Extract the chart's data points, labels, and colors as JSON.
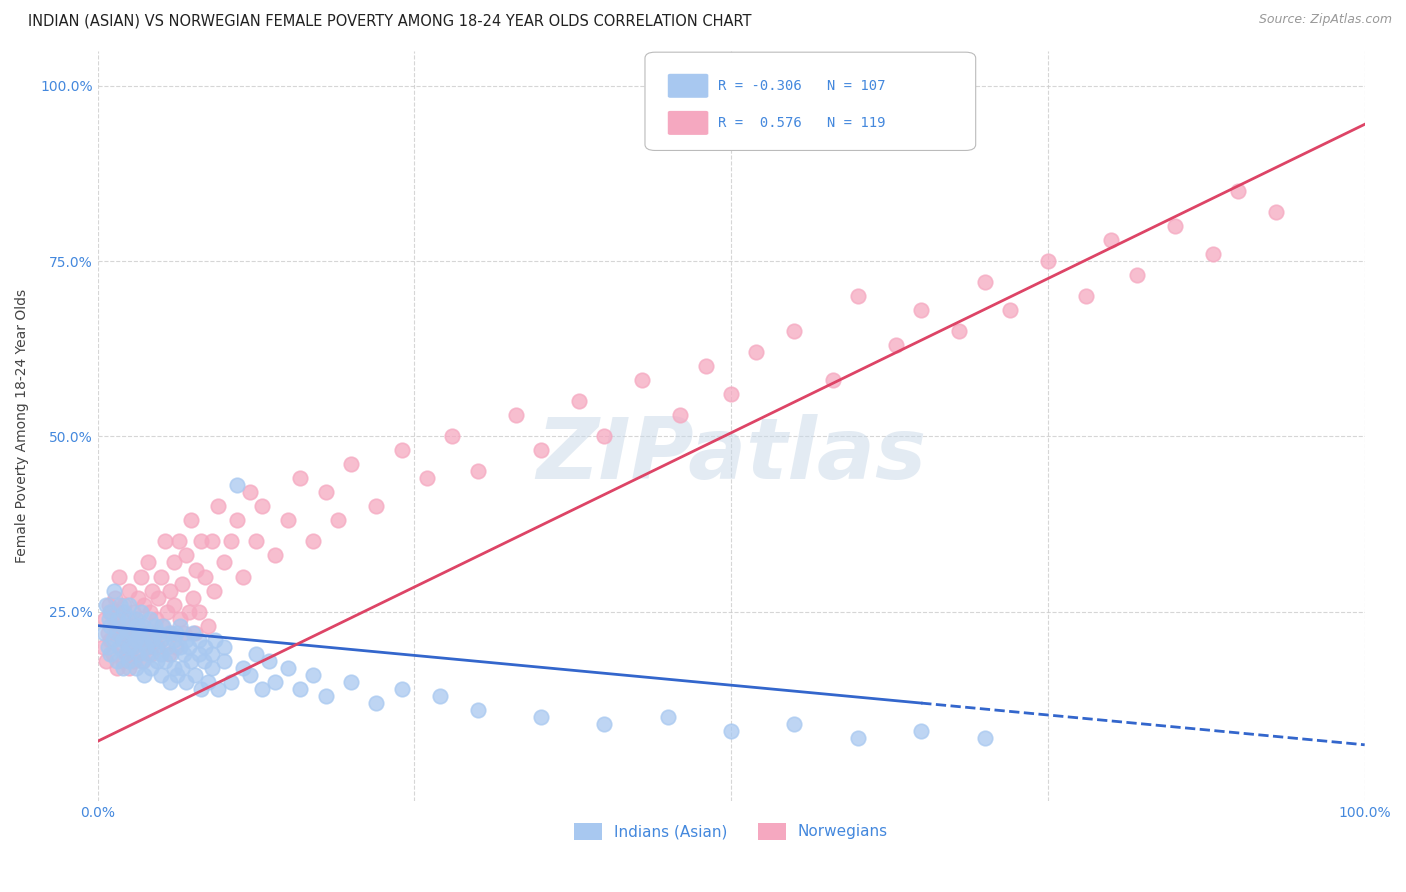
{
  "title": "INDIAN (ASIAN) VS NORWEGIAN FEMALE POVERTY AMONG 18-24 YEAR OLDS CORRELATION CHART",
  "source": "Source: ZipAtlas.com",
  "ylabel": "Female Poverty Among 18-24 Year Olds",
  "watermark": "ZIPatlas",
  "xlim": [
    0.0,
    1.0
  ],
  "ylim": [
    -0.02,
    1.05
  ],
  "blue_color": "#a8c8f0",
  "pink_color": "#f5a8c0",
  "blue_line_color": "#3366cc",
  "pink_line_color": "#dd4466",
  "tick_label_color": "#4488dd",
  "grid_color": "#cccccc",
  "background_color": "#ffffff",
  "title_color": "#222222",
  "axis_label_color": "#444444",
  "legend_label_indian": "Indians (Asian)",
  "legend_label_norwegian": "Norwegians",
  "blue_scatter_x": [
    0.005,
    0.007,
    0.008,
    0.009,
    0.01,
    0.01,
    0.01,
    0.012,
    0.013,
    0.015,
    0.015,
    0.016,
    0.017,
    0.018,
    0.02,
    0.02,
    0.02,
    0.021,
    0.022,
    0.023,
    0.024,
    0.025,
    0.025,
    0.025,
    0.027,
    0.028,
    0.03,
    0.03,
    0.03,
    0.031,
    0.032,
    0.033,
    0.034,
    0.035,
    0.035,
    0.036,
    0.037,
    0.038,
    0.04,
    0.04,
    0.041,
    0.042,
    0.043,
    0.045,
    0.045,
    0.047,
    0.048,
    0.05,
    0.05,
    0.05,
    0.052,
    0.053,
    0.055,
    0.056,
    0.057,
    0.058,
    0.06,
    0.06,
    0.062,
    0.063,
    0.065,
    0.065,
    0.067,
    0.068,
    0.07,
    0.07,
    0.072,
    0.074,
    0.075,
    0.077,
    0.08,
    0.08,
    0.082,
    0.084,
    0.085,
    0.087,
    0.09,
    0.09,
    0.093,
    0.095,
    0.1,
    0.1,
    0.105,
    0.11,
    0.115,
    0.12,
    0.125,
    0.13,
    0.135,
    0.14,
    0.15,
    0.16,
    0.17,
    0.18,
    0.2,
    0.22,
    0.24,
    0.27,
    0.3,
    0.35,
    0.4,
    0.45,
    0.5,
    0.55,
    0.6,
    0.65,
    0.7
  ],
  "blue_scatter_y": [
    0.22,
    0.26,
    0.2,
    0.24,
    0.23,
    0.25,
    0.19,
    0.21,
    0.28,
    0.22,
    0.18,
    0.24,
    0.2,
    0.26,
    0.21,
    0.23,
    0.17,
    0.25,
    0.19,
    0.22,
    0.24,
    0.2,
    0.26,
    0.18,
    0.22,
    0.2,
    0.21,
    0.24,
    0.17,
    0.23,
    0.19,
    0.22,
    0.25,
    0.18,
    0.21,
    0.23,
    0.16,
    0.2,
    0.22,
    0.19,
    0.24,
    0.17,
    0.21,
    0.2,
    0.23,
    0.18,
    0.22,
    0.19,
    0.21,
    0.16,
    0.23,
    0.18,
    0.2,
    0.22,
    0.15,
    0.19,
    0.21,
    0.17,
    0.22,
    0.16,
    0.2,
    0.23,
    0.17,
    0.19,
    0.21,
    0.15,
    0.2,
    0.18,
    0.22,
    0.16,
    0.19,
    0.21,
    0.14,
    0.18,
    0.2,
    0.15,
    0.19,
    0.17,
    0.21,
    0.14,
    0.18,
    0.2,
    0.15,
    0.43,
    0.17,
    0.16,
    0.19,
    0.14,
    0.18,
    0.15,
    0.17,
    0.14,
    0.16,
    0.13,
    0.15,
    0.12,
    0.14,
    0.13,
    0.11,
    0.1,
    0.09,
    0.1,
    0.08,
    0.09,
    0.07,
    0.08,
    0.07
  ],
  "pink_scatter_x": [
    0.004,
    0.006,
    0.007,
    0.008,
    0.009,
    0.01,
    0.01,
    0.012,
    0.013,
    0.014,
    0.015,
    0.015,
    0.016,
    0.017,
    0.018,
    0.019,
    0.02,
    0.02,
    0.021,
    0.022,
    0.023,
    0.024,
    0.025,
    0.025,
    0.026,
    0.027,
    0.028,
    0.029,
    0.03,
    0.03,
    0.031,
    0.032,
    0.033,
    0.034,
    0.035,
    0.036,
    0.037,
    0.038,
    0.04,
    0.04,
    0.041,
    0.042,
    0.043,
    0.045,
    0.046,
    0.047,
    0.048,
    0.05,
    0.05,
    0.051,
    0.053,
    0.055,
    0.056,
    0.057,
    0.058,
    0.06,
    0.06,
    0.062,
    0.064,
    0.065,
    0.067,
    0.068,
    0.07,
    0.072,
    0.074,
    0.075,
    0.077,
    0.078,
    0.08,
    0.082,
    0.085,
    0.087,
    0.09,
    0.092,
    0.095,
    0.1,
    0.105,
    0.11,
    0.115,
    0.12,
    0.125,
    0.13,
    0.14,
    0.15,
    0.16,
    0.17,
    0.18,
    0.19,
    0.2,
    0.22,
    0.24,
    0.26,
    0.28,
    0.3,
    0.33,
    0.35,
    0.38,
    0.4,
    0.43,
    0.46,
    0.48,
    0.5,
    0.52,
    0.55,
    0.58,
    0.6,
    0.63,
    0.65,
    0.68,
    0.7,
    0.72,
    0.75,
    0.78,
    0.8,
    0.82,
    0.85,
    0.88,
    0.9,
    0.93
  ],
  "pink_scatter_y": [
    0.2,
    0.24,
    0.18,
    0.22,
    0.26,
    0.21,
    0.25,
    0.19,
    0.23,
    0.27,
    0.17,
    0.22,
    0.25,
    0.3,
    0.2,
    0.24,
    0.18,
    0.22,
    0.26,
    0.21,
    0.19,
    0.23,
    0.17,
    0.28,
    0.22,
    0.2,
    0.25,
    0.18,
    0.22,
    0.24,
    0.19,
    0.27,
    0.21,
    0.3,
    0.23,
    0.18,
    0.26,
    0.22,
    0.2,
    0.32,
    0.25,
    0.19,
    0.28,
    0.22,
    0.24,
    0.2,
    0.27,
    0.21,
    0.3,
    0.23,
    0.35,
    0.25,
    0.19,
    0.28,
    0.22,
    0.26,
    0.32,
    0.2,
    0.35,
    0.24,
    0.29,
    0.22,
    0.33,
    0.25,
    0.38,
    0.27,
    0.22,
    0.31,
    0.25,
    0.35,
    0.3,
    0.23,
    0.35,
    0.28,
    0.4,
    0.32,
    0.35,
    0.38,
    0.3,
    0.42,
    0.35,
    0.4,
    0.33,
    0.38,
    0.44,
    0.35,
    0.42,
    0.38,
    0.46,
    0.4,
    0.48,
    0.44,
    0.5,
    0.45,
    0.53,
    0.48,
    0.55,
    0.5,
    0.58,
    0.53,
    0.6,
    0.56,
    0.62,
    0.65,
    0.58,
    0.7,
    0.63,
    0.68,
    0.65,
    0.72,
    0.68,
    0.75,
    0.7,
    0.78,
    0.73,
    0.8,
    0.76,
    0.85,
    0.82
  ],
  "blue_line_x0": 0.0,
  "blue_line_x_solid_end": 0.65,
  "blue_line_x1": 1.0,
  "blue_line_y_at_0": 0.23,
  "blue_line_slope": -0.17,
  "pink_line_y_at_0": 0.065,
  "pink_line_slope": 0.88
}
